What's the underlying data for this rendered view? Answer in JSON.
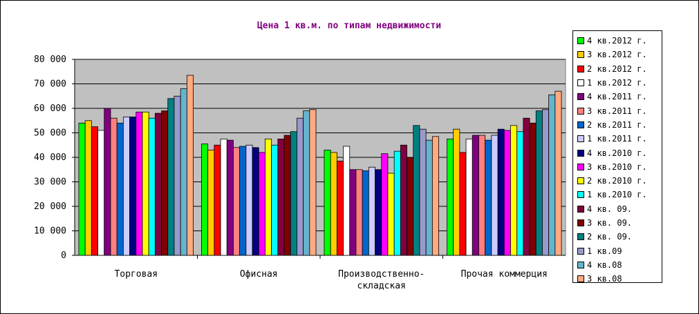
{
  "chart_data": {
    "type": "bar",
    "title": "Цена 1 кв.м. по типам недвижимости",
    "categories": [
      "Торговая",
      "Офисная",
      "Производственно-складская",
      "Прочая коммерция"
    ],
    "category_lines": [
      [
        "Торговая"
      ],
      [
        "Офисная"
      ],
      [
        "Производственно-",
        "складская"
      ],
      [
        "Прочая коммерция"
      ]
    ],
    "y_ticks": [
      "0",
      "10 000",
      "20 000",
      "30 000",
      "40 000",
      "50 000",
      "60 000",
      "70 000",
      "80 000"
    ],
    "ylim": [
      0,
      80000
    ],
    "grid": true,
    "legend_position": "right",
    "plot_background": "#c0c0c0",
    "series": [
      {
        "name": "4 кв.2012 г.",
        "color": "#00ff00",
        "values": [
          54000,
          45500,
          43000,
          47500
        ]
      },
      {
        "name": "3 кв.2012 г.",
        "color": "#ffcc00",
        "values": [
          55000,
          43000,
          42000,
          51500
        ]
      },
      {
        "name": "2 кв.2012 г.",
        "color": "#ff0000",
        "values": [
          52500,
          45000,
          38500,
          42000
        ]
      },
      {
        "name": "1 кв.2012 г.",
        "color": "#ffffff",
        "values": [
          51000,
          47500,
          44500,
          47500
        ]
      },
      {
        "name": "4 кв.2011 г.",
        "color": "#800080",
        "values": [
          60000,
          47000,
          35000,
          49000
        ]
      },
      {
        "name": "3 кв.2011 г.",
        "color": "#ff8080",
        "values": [
          56000,
          44000,
          35000,
          49000
        ]
      },
      {
        "name": "2 кв.2011 г.",
        "color": "#0066cc",
        "values": [
          54000,
          44500,
          34500,
          47000
        ]
      },
      {
        "name": "1 кв.2011 г.",
        "color": "#ccccff",
        "values": [
          56500,
          45000,
          36000,
          49000
        ]
      },
      {
        "name": "4 кв.2010 г.",
        "color": "#000080",
        "values": [
          56500,
          44000,
          35000,
          51500
        ]
      },
      {
        "name": "3 кв.2010 г.",
        "color": "#ff00ff",
        "values": [
          58500,
          42000,
          41500,
          51000
        ]
      },
      {
        "name": "2 кв.2010 г.",
        "color": "#ffff00",
        "values": [
          58500,
          47500,
          33500,
          53000
        ]
      },
      {
        "name": "1 кв.2010 г.",
        "color": "#00ffff",
        "values": [
          56000,
          45000,
          42500,
          50500
        ]
      },
      {
        "name": "4 кв. 09.",
        "color": "#800040",
        "values": [
          58000,
          47500,
          45000,
          56000
        ]
      },
      {
        "name": "3 кв. 09.",
        "color": "#800000",
        "values": [
          59000,
          49000,
          40000,
          54000
        ]
      },
      {
        "name": "2 кв. 09.",
        "color": "#008080",
        "values": [
          64000,
          50500,
          53000,
          59000
        ]
      },
      {
        "name": "1 кв.09",
        "color": "#9999cc",
        "values": [
          65000,
          56000,
          51500,
          59500
        ]
      },
      {
        "name": "4 кв.08",
        "color": "#66b3cc",
        "values": [
          68000,
          59000,
          47000,
          65500
        ]
      },
      {
        "name": "3 кв.08",
        "color": "#ffaa80",
        "values": [
          73500,
          59500,
          48500,
          67000
        ]
      }
    ]
  }
}
